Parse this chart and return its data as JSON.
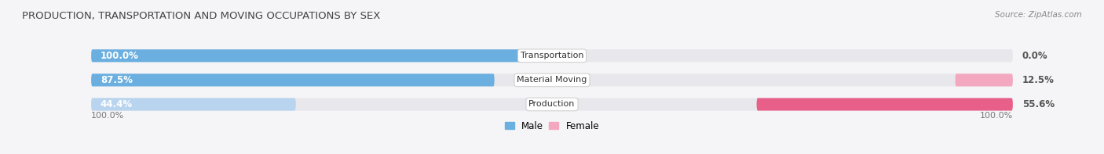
{
  "title": "PRODUCTION, TRANSPORTATION AND MOVING OCCUPATIONS BY SEX",
  "source": "Source: ZipAtlas.com",
  "categories": [
    "Transportation",
    "Material Moving",
    "Production"
  ],
  "male_values": [
    100.0,
    87.5,
    44.4
  ],
  "female_values": [
    0.0,
    12.5,
    55.6
  ],
  "male_color_dark": "#6aafe0",
  "male_color_light": "#b8d4ef",
  "female_color_pink": "#f4a8c0",
  "female_color_hotpink": "#e8608a",
  "bar_bg_color": "#e8e8ec",
  "male_label": "Male",
  "female_label": "Female",
  "x_label": "100.0%",
  "figsize": [
    14.06,
    1.97
  ],
  "dpi": 100,
  "bg_color": "#f5f5f7"
}
